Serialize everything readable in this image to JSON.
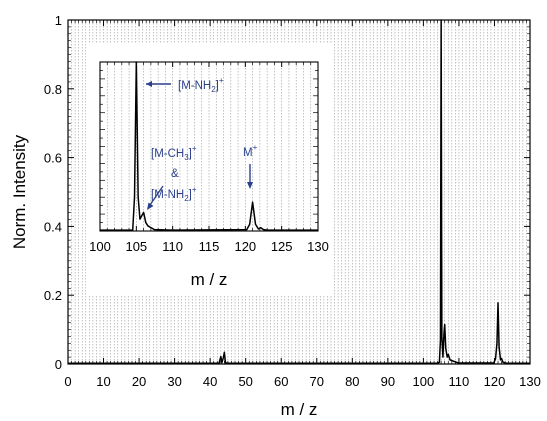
{
  "chart_data": [
    {
      "type": "line",
      "role": "main",
      "xlabel": "m / z",
      "ylabel": "Norm. Intensity",
      "xlim": [
        0,
        130
      ],
      "ylim": [
        0,
        1
      ],
      "xticks": [
        0,
        10,
        20,
        30,
        40,
        50,
        60,
        70,
        80,
        90,
        100,
        110,
        120,
        130
      ],
      "yticks": [
        0,
        0.2,
        0.4,
        0.6,
        0.8,
        1
      ],
      "ytick_labels": [
        "0",
        "0.2",
        "0.4",
        "0.6",
        "0.8",
        "1"
      ],
      "grid": true,
      "grid_style": "dotted vertical lines every 1 m/z",
      "series": [
        {
          "color": "#000000",
          "x": [
            0,
            42.5,
            43,
            43.3,
            43.7,
            44,
            44.3,
            45,
            103.8,
            104.5,
            104.8,
            105,
            105.2,
            105.5,
            105.8,
            106,
            106.3,
            106.7,
            107,
            107.5,
            109,
            110,
            119.8,
            120.3,
            120.7,
            121,
            121.3,
            121.7,
            122,
            122.4,
            123,
            124,
            130
          ],
          "y": [
            0.002,
            0.002,
            0.022,
            0.004,
            0.018,
            0.034,
            0.004,
            0.002,
            0.002,
            0.005,
            0.07,
            1.0,
            0.08,
            0.02,
            0.09,
            0.115,
            0.045,
            0.02,
            0.028,
            0.012,
            0.006,
            0.003,
            0.003,
            0.015,
            0.06,
            0.178,
            0.05,
            0.012,
            0.016,
            0.005,
            0.003,
            0.002,
            0.002
          ]
        }
      ]
    },
    {
      "type": "line",
      "role": "inset",
      "xlabel": "m / z",
      "ylabel": "",
      "xlim": [
        100,
        130
      ],
      "ylim": [
        0,
        1
      ],
      "xticks": [
        100,
        105,
        110,
        115,
        120,
        125,
        130
      ],
      "grid": true,
      "series": [
        {
          "color": "#000000",
          "x": [
            100,
            104.5,
            104.75,
            105,
            105.25,
            105.5,
            105.75,
            106,
            106.3,
            106.6,
            107,
            107.5,
            110,
            120.2,
            120.6,
            121,
            121.4,
            121.8,
            122.1,
            122.5,
            123,
            130
          ],
          "y": [
            0.005,
            0.005,
            0.2,
            1.0,
            0.2,
            0.07,
            0.09,
            0.11,
            0.05,
            0.03,
            0.02,
            0.008,
            0.005,
            0.008,
            0.04,
            0.17,
            0.04,
            0.012,
            0.02,
            0.008,
            0.005,
            0.005
          ]
        }
      ],
      "annotations": [
        {
          "lines": [
            "[M-NH",
            "2",
            "]",
            "+"
          ],
          "target_x": 105
        },
        {
          "lines": [
            "[M-CH",
            "3",
            "]",
            "+",
            "&",
            "[M-NH",
            "2",
            "]",
            "+"
          ],
          "target_x": 106
        },
        {
          "lines": [
            "M",
            "+"
          ],
          "target_x": 121
        }
      ]
    }
  ],
  "annotations": {
    "a1": {
      "text": "[M-NH",
      "sub": "2",
      "close": "]",
      "sup": "+"
    },
    "a2": {
      "text": "[M-CH",
      "sub": "3",
      "close": "]",
      "sup": "+"
    },
    "a2_amp": "&",
    "a2b": {
      "text": "[M-NH",
      "sub": "2",
      "close": "]",
      "sup": "+"
    },
    "a3": {
      "text": "M",
      "sup": "+"
    }
  },
  "colors": {
    "annotation": "#2b3f8c",
    "trace": "#000000",
    "grid": "#9a9a9a"
  }
}
